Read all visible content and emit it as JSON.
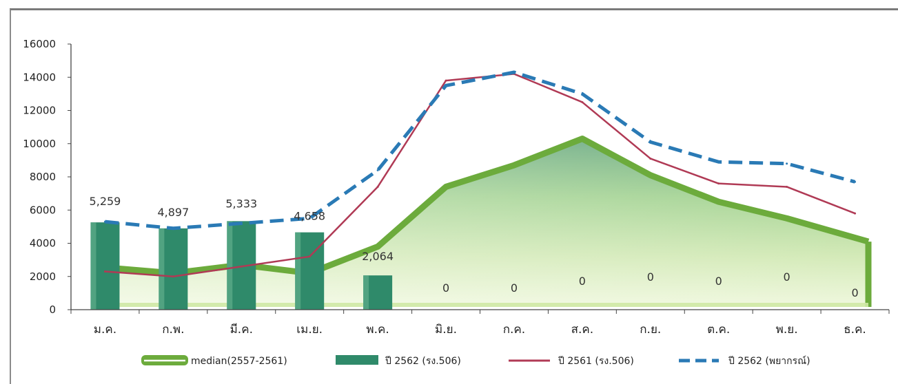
{
  "chart_data": {
    "type": "bar",
    "title": "",
    "xlabel": "",
    "ylabel": "",
    "categories": [
      "ม.ค.",
      "ก.พ.",
      "มี.ค.",
      "เม.ย.",
      "พ.ค.",
      "มิ.ย.",
      "ก.ค.",
      "ส.ค.",
      "ก.ย.",
      "ต.ค.",
      "พ.ย.",
      "ธ.ค."
    ],
    "ylim": [
      0,
      16000
    ],
    "yticks": [
      "0",
      "2000",
      "4000",
      "6000",
      "8000",
      "10000",
      "12000",
      "14000",
      "16000"
    ],
    "series": [
      {
        "name": "median(2557-2561)",
        "kind": "area",
        "color": "#6cab3c",
        "values": [
          2600,
          2200,
          2700,
          2200,
          3800,
          7400,
          8700,
          10300,
          8100,
          6500,
          5500,
          4100
        ]
      },
      {
        "name": "ปี 2562 (รง.506)",
        "kind": "bar",
        "color": "#2f8a6a",
        "values": [
          5259,
          4897,
          5333,
          4658,
          2064,
          0,
          0,
          0,
          0,
          0,
          0,
          0
        ]
      },
      {
        "name": "ปี 2561 (รง.506)",
        "kind": "line",
        "color": "#b03a55",
        "values": [
          2300,
          2000,
          2600,
          3200,
          7400,
          13800,
          14200,
          12500,
          9100,
          7600,
          7400,
          5800
        ]
      },
      {
        "name": "ปี 2562 (พยากรณ์)",
        "kind": "dashed-line",
        "color": "#2a7ab5",
        "values": [
          5300,
          4900,
          5200,
          5500,
          8400,
          13500,
          14300,
          13000,
          10100,
          8900,
          8800,
          7700
        ]
      }
    ],
    "bar_labels": [
      "5,259",
      "4,897",
      "5,333",
      "4,658",
      "2,064",
      "0",
      "0",
      "0",
      "0",
      "0",
      "0",
      "0"
    ],
    "grid": false,
    "legend_position": "bottom"
  }
}
